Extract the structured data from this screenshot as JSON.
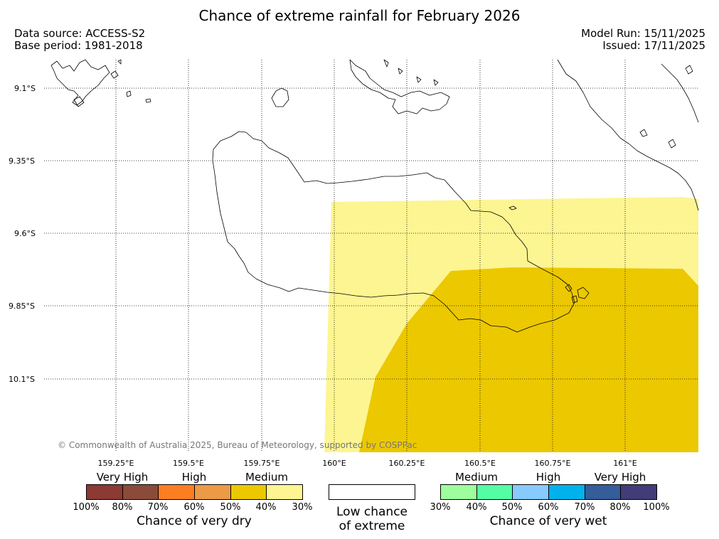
{
  "title": "Chance of extreme rainfall for February 2026",
  "meta_left": {
    "source": "Data source: ACCESS-S2",
    "base_period": "Base period: 1981-2018"
  },
  "meta_right": {
    "model_run": "Model Run: 15/11/2025",
    "issued": "Issued: 17/11/2025"
  },
  "map": {
    "lat_labels": [
      "9.1°S",
      "9.35°S",
      "9.6°S",
      "9.85°S",
      "10.1°S"
    ],
    "lon_labels": [
      "159.25°E",
      "159.5°E",
      "159.75°E",
      "160°E",
      "160.25°E",
      "160.5°E",
      "160.75°E",
      "161°E"
    ],
    "copyright": "© Commonwealth of Australia 2025, Bureau of Meteorology, supported by COSPPac",
    "region_colors": {
      "medium_30_40_dry": "#fdf591",
      "medium_40_50_dry": "#ecc800",
      "coastline": "#000000",
      "gridline": "#000000"
    }
  },
  "legend": {
    "dry": {
      "categories": [
        "Very High",
        "High",
        "Medium"
      ],
      "colors": [
        "#8b3a34",
        "#8a4b3a",
        "#fd7e22",
        "#ec9a45",
        "#ecc800",
        "#fdf591"
      ],
      "ticks": [
        "100%",
        "80%",
        "70%",
        "60%",
        "50%",
        "40%",
        "30%"
      ],
      "title": "Chance of very dry"
    },
    "low": {
      "line1": "Low chance",
      "line2": "of extreme"
    },
    "wet": {
      "categories": [
        "Medium",
        "High",
        "Very High"
      ],
      "colors": [
        "#9efd9c",
        "#54fda4",
        "#87cafd",
        "#00b1ec",
        "#345d9a",
        "#423c78"
      ],
      "ticks": [
        "30%",
        "40%",
        "50%",
        "60%",
        "70%",
        "80%",
        "100%"
      ],
      "title": "Chance of very wet"
    }
  }
}
